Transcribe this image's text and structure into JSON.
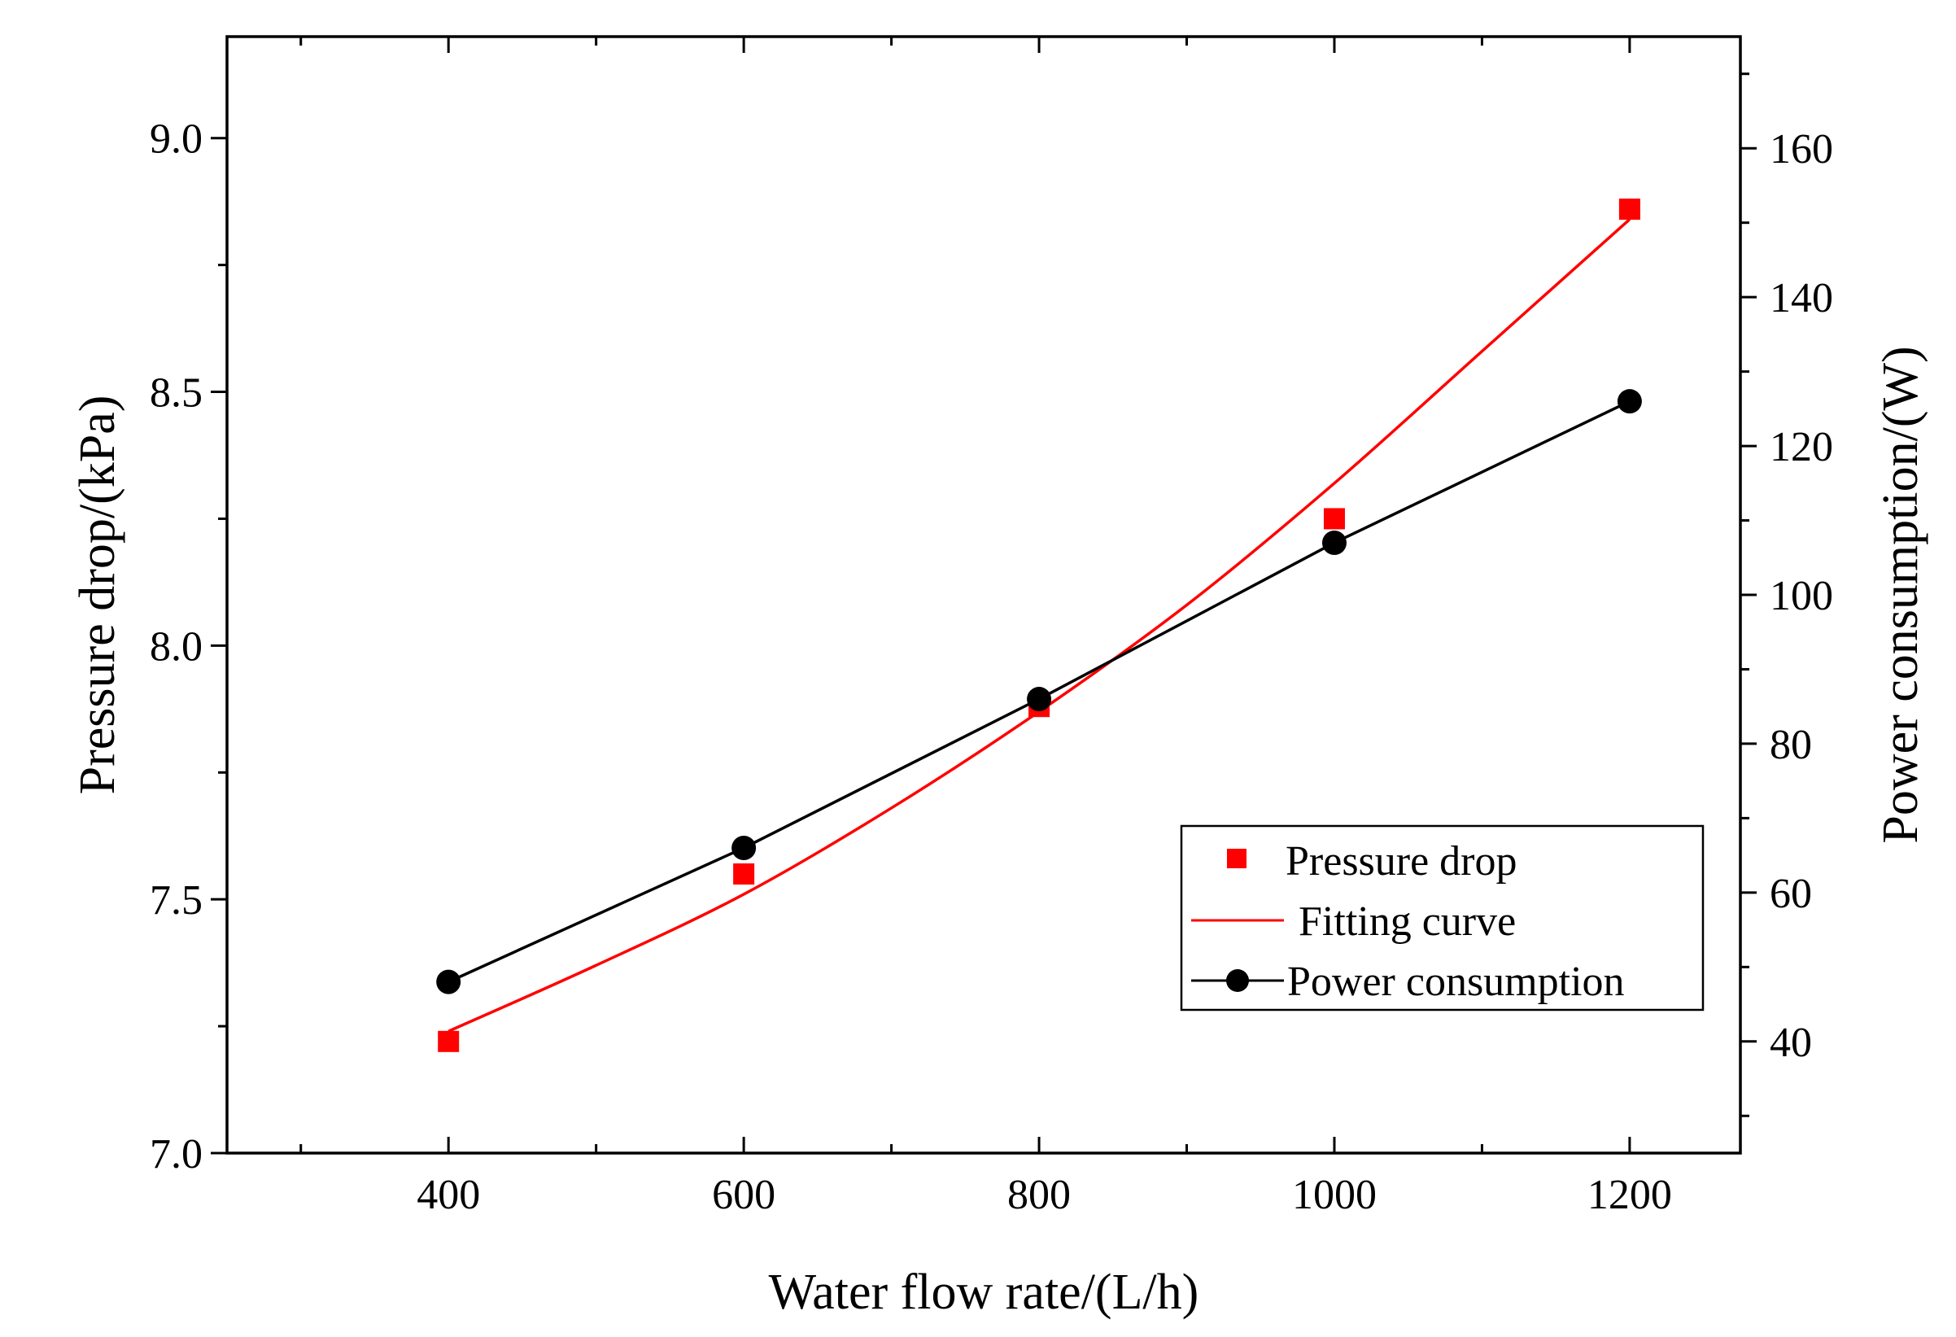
{
  "chart_data": {
    "type": "line",
    "title": "",
    "xlabel": "Water flow rate/(L/h)",
    "ylabel": "Pressure drop/(kPa)",
    "y2label": "Power consumption/(W)",
    "xlim": [
      250,
      1275
    ],
    "ylim": [
      7.0,
      9.2
    ],
    "y2lim": [
      25,
      175
    ],
    "xticks": [
      400,
      600,
      800,
      1000,
      1200
    ],
    "xtick_labels": [
      "400",
      "600",
      "800",
      "1000",
      "1200"
    ],
    "yticks": [
      7.0,
      7.5,
      8.0,
      8.5,
      9.0
    ],
    "ytick_labels": [
      "7.0",
      "7.5",
      "8.0",
      "8.5",
      "9.0"
    ],
    "y2ticks": [
      40,
      60,
      80,
      100,
      120,
      140,
      160
    ],
    "y2tick_labels": [
      "40",
      "60",
      "80",
      "100",
      "120",
      "140",
      "160"
    ],
    "grid": false,
    "legend_position": "bottom-right",
    "series": [
      {
        "name": "Pressure drop",
        "kind": "scatter",
        "marker": "square",
        "color": "#ff0000",
        "axis": "left",
        "x": [
          400,
          600,
          800,
          1000,
          1200
        ],
        "y": [
          7.22,
          7.55,
          7.88,
          8.25,
          8.86
        ]
      },
      {
        "name": "Fitting curve",
        "kind": "line",
        "color": "#ff0000",
        "axis": "left",
        "x": [
          400,
          500,
          600,
          700,
          800,
          900,
          1000,
          1100,
          1200
        ],
        "y": [
          7.24,
          7.37,
          7.51,
          7.68,
          7.87,
          8.08,
          8.32,
          8.58,
          8.84
        ]
      },
      {
        "name": "Power consumption",
        "kind": "line+marker",
        "marker": "circle",
        "color": "#000000",
        "axis": "right",
        "x": [
          400,
          600,
          800,
          1000,
          1200
        ],
        "y": [
          48,
          66,
          86,
          107,
          126
        ]
      }
    ]
  }
}
